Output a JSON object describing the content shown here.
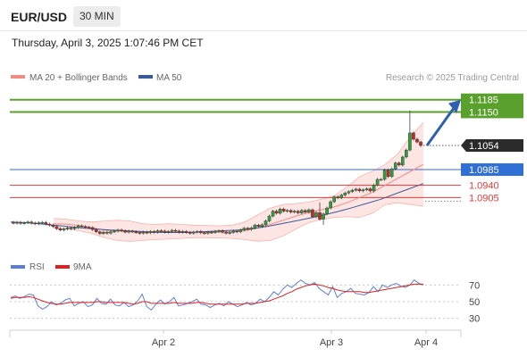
{
  "header": {
    "symbol": "EUR/USD",
    "timeframe": "30 MIN",
    "datetime": "Thursday, April 3, 2025 1:07:46 PM CET"
  },
  "legend": {
    "items": [
      {
        "label": "MA 20 + Bollinger Bands",
        "color": "#f28b82"
      },
      {
        "label": "MA 50",
        "color": "#3a5a9a"
      }
    ],
    "credit": "Research © 2025 Trading Central"
  },
  "chart_data": [
    {
      "type": "candlestick",
      "name": "price",
      "y_range": [
        1.075,
        1.1215
      ],
      "current_price": "1.1054",
      "levels": [
        {
          "value": 1.1185,
          "label": "1.1185",
          "kind": "resistance",
          "color": "#5aa02c"
        },
        {
          "value": 1.115,
          "label": "1.1150",
          "kind": "resistance",
          "color": "#5aa02c"
        },
        {
          "value": 1.0985,
          "label": "1.0985",
          "kind": "pivot",
          "color": "#2f6fd6"
        },
        {
          "value": 1.094,
          "label": "1.0940",
          "kind": "support",
          "color": "#e53935"
        },
        {
          "value": 1.0905,
          "label": "1.0905",
          "kind": "support",
          "color": "#e53935"
        }
      ],
      "close_series": [
        1.0832,
        1.0834,
        1.0831,
        1.0833,
        1.0835,
        1.0832,
        1.083,
        1.0833,
        1.0834,
        1.0829,
        1.0826,
        1.0822,
        1.0816,
        1.0812,
        1.0815,
        1.0818,
        1.0816,
        1.0819,
        1.0824,
        1.0822,
        1.082,
        1.0819,
        1.0813,
        1.0807,
        1.0802,
        1.0806,
        1.0803,
        1.0807,
        1.0809,
        1.0812,
        1.081,
        1.0806,
        1.0809,
        1.0807,
        1.0805,
        1.0803,
        1.0806,
        1.0804,
        1.0808,
        1.0806,
        1.081,
        1.0809,
        1.0806,
        1.0808,
        1.0811,
        1.0809,
        1.0806,
        1.0808,
        1.0805,
        1.0803,
        1.0806,
        1.0808,
        1.0804,
        1.0803,
        1.0806,
        1.0805,
        1.0808,
        1.081,
        1.0806,
        1.0803,
        1.0805,
        1.0809,
        1.0807,
        1.0812,
        1.0817,
        1.0814,
        1.0818,
        1.0826,
        1.0822,
        1.0827,
        1.0838,
        1.0852,
        1.0866,
        1.086,
        1.0872,
        1.0866,
        1.0868,
        1.0863,
        1.0866,
        1.0861,
        1.0868,
        1.0863,
        1.087,
        1.085,
        1.0862,
        1.0843,
        1.0858,
        1.0875,
        1.0893,
        1.0907,
        1.0904,
        1.0912,
        1.0918,
        1.0922,
        1.0926,
        1.0929,
        1.0924,
        1.0927,
        1.093,
        1.0924,
        1.0941,
        1.0957,
        1.0957,
        1.0984,
        1.0965,
        1.0987,
        1.1004,
        1.0998,
        1.1021,
        1.1041,
        1.109,
        1.1072,
        1.1064,
        1.1054
      ],
      "ma20": [
        1.083,
        1.0829,
        1.0825,
        1.0818,
        1.0812,
        1.0809,
        1.0808,
        1.0806,
        1.0805,
        1.0806,
        1.0806,
        1.0806,
        1.0807,
        1.0806,
        1.0807,
        1.081,
        1.0818,
        1.0828,
        1.084,
        1.0852,
        1.0862,
        1.087,
        1.0878,
        1.089,
        1.0905,
        1.092,
        1.094,
        1.096,
        1.098,
        1.1
      ],
      "ma50": [
        1.0835,
        1.0833,
        1.083,
        1.0826,
        1.0822,
        1.0818,
        1.0815,
        1.0812,
        1.081,
        1.0808,
        1.0806,
        1.0805,
        1.0805,
        1.0806,
        1.0808,
        1.081,
        1.0812,
        1.0816,
        1.0822,
        1.083,
        1.0838,
        1.0846,
        1.0855,
        1.0865,
        1.0876,
        1.0888,
        1.09,
        1.0915,
        1.093,
        1.0945
      ],
      "bb_upper": [
        1.0845,
        1.0843,
        1.0838,
        1.0835,
        1.0838,
        1.084,
        1.0838,
        1.083,
        1.0828,
        1.083,
        1.0828,
        1.0826,
        1.0825,
        1.0824,
        1.0826,
        1.0835,
        1.0855,
        1.0875,
        1.0885,
        1.0888,
        1.0892,
        1.09,
        1.091,
        1.0935,
        1.0965,
        1.098,
        1.1,
        1.103,
        1.108,
        1.112
      ],
      "bb_lower": [
        1.0818,
        1.0815,
        1.081,
        1.0802,
        1.079,
        1.0782,
        1.078,
        1.0782,
        1.0785,
        1.0786,
        1.0788,
        1.079,
        1.079,
        1.0789,
        1.0788,
        1.0785,
        1.078,
        1.0782,
        1.0795,
        1.0815,
        1.0833,
        1.0842,
        1.0848,
        1.085,
        1.0848,
        1.086,
        1.0885,
        1.089,
        1.0885,
        1.088
      ]
    },
    {
      "type": "line",
      "name": "RSI",
      "y_ticks": [
        70,
        50,
        30
      ],
      "y_range": [
        20,
        80
      ],
      "legend": [
        {
          "label": "RSI",
          "color": "#5b7fd6"
        },
        {
          "label": "9MA",
          "color": "#e02020"
        }
      ],
      "rsi": [
        55,
        57,
        54,
        56,
        59,
        58,
        45,
        41,
        44,
        50,
        46,
        48,
        52,
        54,
        45,
        48,
        50,
        44,
        46,
        54,
        48,
        47,
        53,
        46,
        45,
        49,
        44,
        46,
        51,
        59,
        44,
        40,
        47,
        52,
        47,
        50,
        55,
        45,
        46,
        48,
        50,
        53,
        47,
        46,
        43,
        46,
        48,
        45,
        50,
        47,
        44,
        46,
        49,
        46,
        48,
        53,
        50,
        55,
        62,
        58,
        65,
        70,
        67,
        72,
        76,
        72,
        70,
        73,
        66,
        62,
        58,
        68,
        55,
        60,
        62,
        66,
        60,
        59,
        58,
        61,
        68,
        62,
        70,
        67,
        70,
        72,
        69,
        67,
        70,
        76,
        72,
        70
      ],
      "ma9": [
        54,
        55,
        55,
        55,
        56,
        55,
        53,
        51,
        49,
        48,
        47,
        47,
        48,
        49,
        49,
        49,
        49,
        49,
        49,
        50,
        50,
        49,
        49,
        49,
        49,
        49,
        48,
        47,
        48,
        50,
        50,
        48,
        48,
        48,
        48,
        48,
        49,
        48,
        48,
        48,
        48,
        49,
        49,
        48,
        47,
        47,
        47,
        47,
        47,
        47,
        47,
        47,
        48,
        48,
        48,
        49,
        50,
        51,
        53,
        55,
        57,
        60,
        62,
        65,
        67,
        69,
        70,
        71,
        70,
        69,
        67,
        66,
        64,
        63,
        62,
        62,
        62,
        62,
        61,
        61,
        62,
        63,
        64,
        65,
        66,
        67,
        68,
        69,
        70,
        71,
        71,
        71
      ],
      "x_ticks": [
        "Apr 2",
        "Apr 3",
        "Apr 4"
      ]
    }
  ]
}
